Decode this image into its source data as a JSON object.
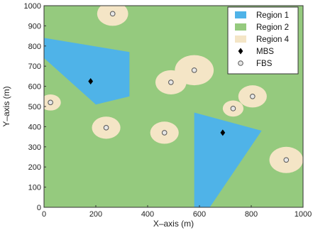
{
  "chart_data": {
    "type": "scatter",
    "xlabel": "X–axis (m)",
    "ylabel": "Y–axis (m)",
    "xlim": [
      0,
      1000
    ],
    "ylim": [
      0,
      1000
    ],
    "x_ticks": [
      "0",
      "200",
      "400",
      "600",
      "800",
      "1000"
    ],
    "y_ticks": [
      "0",
      "100",
      "200",
      "300",
      "400",
      "500",
      "600",
      "700",
      "800",
      "900",
      "1000"
    ],
    "legend_position": "top-right",
    "colors": {
      "region1": "#4fb3e8",
      "region2": "#95ca7e",
      "region4": "#f4e5c6",
      "mbs": "#000000",
      "fbs_fill": "#e6e6e6",
      "fbs_edge": "#555555"
    },
    "legend": [
      {
        "key": "region1",
        "label": "Region 1",
        "kind": "swatch"
      },
      {
        "key": "region2",
        "label": "Region 2",
        "kind": "swatch"
      },
      {
        "key": "region4",
        "label": "Region 4",
        "kind": "swatch"
      },
      {
        "key": "mbs",
        "label": "MBS",
        "kind": "diamond"
      },
      {
        "key": "fbs",
        "label": "FBS",
        "kind": "circle"
      }
    ],
    "region1_polygons": [
      [
        [
          0,
          840
        ],
        [
          330,
          770
        ],
        [
          330,
          550
        ],
        [
          200,
          510
        ],
        [
          0,
          740
        ]
      ],
      [
        [
          580,
          470
        ],
        [
          840,
          380
        ],
        [
          640,
          0
        ],
        [
          580,
          0
        ]
      ]
    ],
    "mbs": [
      [
        180,
        625
      ],
      [
        690,
        370
      ]
    ],
    "fbs": [
      {
        "x": 265,
        "y": 960,
        "r": 60
      },
      {
        "x": 25,
        "y": 520,
        "r": 40
      },
      {
        "x": 240,
        "y": 395,
        "r": 55
      },
      {
        "x": 490,
        "y": 620,
        "r": 60
      },
      {
        "x": 580,
        "y": 680,
        "r": 75
      },
      {
        "x": 465,
        "y": 370,
        "r": 55
      },
      {
        "x": 730,
        "y": 490,
        "r": 40
      },
      {
        "x": 805,
        "y": 550,
        "r": 55
      },
      {
        "x": 935,
        "y": 235,
        "r": 65
      }
    ]
  }
}
